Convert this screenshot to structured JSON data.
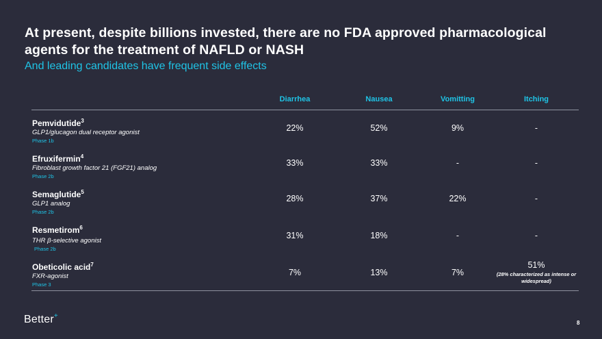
{
  "slide": {
    "title": "At present, despite billions invested, there are no FDA approved pharmacological agents for the treatment of NAFLD or NASH",
    "subtitle": "And leading candidates have frequent side effects",
    "page_number": "8",
    "logo_text": "Better",
    "logo_mark": "+"
  },
  "table": {
    "columns": [
      "Diarrhea",
      "Nausea",
      "Vomitting",
      "Itching"
    ],
    "rows": [
      {
        "name": "Pemvidutide",
        "ref": "3",
        "description": "GLP1/glucagon dual receptor agonist",
        "phase": "Phase 1b",
        "values": [
          "22%",
          "52%",
          "9%",
          "-"
        ],
        "note": ""
      },
      {
        "name": "Efruxifermin",
        "ref": "4",
        "description": "Fibroblast growth factor 21 (FGF21) analog",
        "phase": "Phase 2b",
        "values": [
          "33%",
          "33%",
          "-",
          "-"
        ],
        "note": ""
      },
      {
        "name": "Semaglutide",
        "ref": "5",
        "description": "GLP1 analog",
        "phase": "Phase 2b",
        "values": [
          "28%",
          "37%",
          "22%",
          "-"
        ],
        "note": ""
      },
      {
        "name": "Resmetirom",
        "ref": "6",
        "description": "THR β-selective agonist",
        "phase": "Phase 2b",
        "values": [
          "31%",
          "18%",
          "-",
          "-"
        ],
        "note": ""
      },
      {
        "name": "Obeticolic acid",
        "ref": "7",
        "description": "FXR-agonist",
        "phase": "Phase 3",
        "values": [
          "7%",
          "13%",
          "7%",
          "51%"
        ],
        "note": "(28% characterized as intense or widespread)"
      }
    ]
  }
}
